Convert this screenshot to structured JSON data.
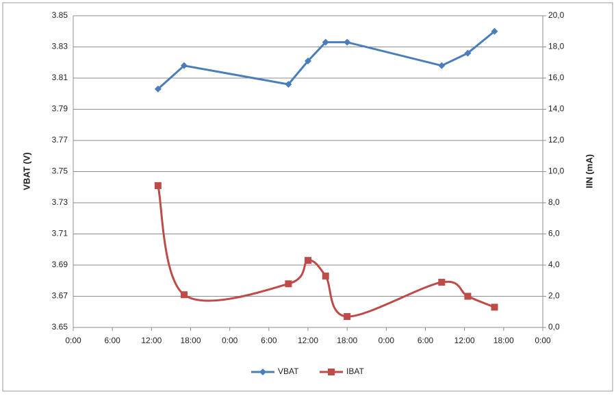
{
  "chart_data": {
    "type": "line",
    "x": [
      13,
      17,
      33,
      36,
      38.7,
      42,
      56.5,
      60.5,
      64.6
    ],
    "xlim": [
      0,
      72
    ],
    "xticks": [
      {
        "value": 0,
        "label": "0:00"
      },
      {
        "value": 6,
        "label": "6:00"
      },
      {
        "value": 12,
        "label": "12:00"
      },
      {
        "value": 18,
        "label": "18:00"
      },
      {
        "value": 24,
        "label": "0:00"
      },
      {
        "value": 30,
        "label": "6:00"
      },
      {
        "value": 36,
        "label": "12:00"
      },
      {
        "value": 42,
        "label": "18:00"
      },
      {
        "value": 48,
        "label": "0:00"
      },
      {
        "value": 54,
        "label": "6:00"
      },
      {
        "value": 60,
        "label": "12:00"
      },
      {
        "value": 66,
        "label": "18:00"
      },
      {
        "value": 72,
        "label": "0:00"
      }
    ],
    "ylabel": "VBAT (V)",
    "y2label": "IIN (mA)",
    "ylim": [
      3.65,
      3.85
    ],
    "yticks": [
      3.65,
      3.67,
      3.69,
      3.71,
      3.73,
      3.75,
      3.77,
      3.79,
      3.81,
      3.83,
      3.85
    ],
    "y2lim": [
      0,
      20
    ],
    "y2ticks": [
      {
        "value": 0,
        "label": "0,0"
      },
      {
        "value": 2,
        "label": "2,0"
      },
      {
        "value": 4,
        "label": "4,0"
      },
      {
        "value": 6,
        "label": "6,0"
      },
      {
        "value": 8,
        "label": "8,0"
      },
      {
        "value": 10,
        "label": "10,0"
      },
      {
        "value": 12,
        "label": "12,0"
      },
      {
        "value": 14,
        "label": "14,0"
      },
      {
        "value": 16,
        "label": "16,0"
      },
      {
        "value": 18,
        "label": "18,0"
      },
      {
        "value": 20,
        "label": "20,0"
      }
    ],
    "grid": true,
    "legend": "bottom",
    "series": [
      {
        "name": "VBAT",
        "color": "#4a7ebb",
        "marker": "diamond",
        "smooth": false,
        "values": [
          3.803,
          3.818,
          3.806,
          3.821,
          3.833,
          3.833,
          3.818,
          3.826,
          3.84
        ]
      },
      {
        "name": "IBAT",
        "color": "#be4b48",
        "marker": "square",
        "smooth": true,
        "axis": "y2",
        "values": [
          9.1,
          2.1,
          2.8,
          4.3,
          3.3,
          0.7,
          2.9,
          2.0,
          1.3
        ]
      }
    ]
  }
}
